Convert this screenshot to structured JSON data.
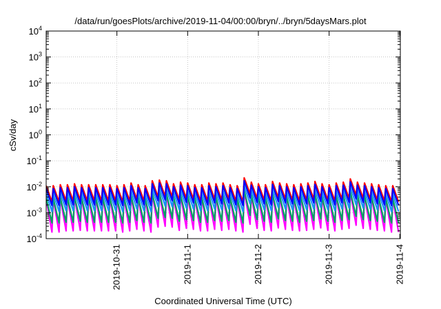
{
  "chart_data": {
    "type": "line",
    "title": "/data/run/goesPlots/archive/2019-11-04/00:00/bryn/../bryn/5daysMars.plot",
    "xlabel": "Coordinated Universal Time (UTC)",
    "ylabel": "cSv/day",
    "yscale": "log",
    "ylim": [
      0.0001,
      10000
    ],
    "xlim": [
      "2019-10-30T00:00",
      "2019-11-04T00:10"
    ],
    "grid": true,
    "y_ticks": [
      {
        "base": "10",
        "exp": "-4",
        "value": 0.0001
      },
      {
        "base": "10",
        "exp": "-3",
        "value": 0.001
      },
      {
        "base": "10",
        "exp": "-2",
        "value": 0.01
      },
      {
        "base": "10",
        "exp": "-1",
        "value": 0.1
      },
      {
        "base": "10",
        "exp": "0",
        "value": 1
      },
      {
        "base": "10",
        "exp": "1",
        "value": 10
      },
      {
        "base": "10",
        "exp": "2",
        "value": 100
      },
      {
        "base": "10",
        "exp": "3",
        "value": 1000
      },
      {
        "base": "10",
        "exp": "4",
        "value": 10000
      }
    ],
    "x_ticks": [
      {
        "label": "2019-10-31",
        "value": "2019-10-31T00:00"
      },
      {
        "label": "2019-11-1",
        "value": "2019-11-01T00:00"
      },
      {
        "label": "2019-11-2",
        "value": "2019-11-02T00:00"
      },
      {
        "label": "2019-11-3",
        "value": "2019-11-03T00:00"
      },
      {
        "label": "2019-11-4",
        "value": "2019-11-04T00:00"
      }
    ],
    "sawtooth": {
      "start": "2019-10-30T00:00",
      "period_hours": 2.4,
      "cycles": 50
    },
    "series": [
      {
        "color": "#ff0000",
        "peaks": [
          0.011,
          0.011,
          0.012,
          0.012,
          0.013,
          0.012,
          0.012,
          0.012,
          0.012,
          0.012,
          0.011,
          0.012,
          0.014,
          0.012,
          0.011,
          0.017,
          0.018,
          0.017,
          0.013,
          0.015,
          0.014,
          0.012,
          0.012,
          0.014,
          0.013,
          0.014,
          0.012,
          0.011,
          0.022,
          0.015,
          0.013,
          0.012,
          0.016,
          0.014,
          0.013,
          0.012,
          0.013,
          0.014,
          0.016,
          0.013,
          0.012,
          0.014,
          0.015,
          0.02,
          0.015,
          0.014,
          0.013,
          0.012,
          0.011,
          0.011
        ],
        "troughs": [
          0.0026,
          0.0026,
          0.0028,
          0.0028,
          0.003,
          0.0028,
          0.0028,
          0.0028,
          0.0028,
          0.0028,
          0.0026,
          0.0028,
          0.0033,
          0.0028,
          0.0026,
          0.004,
          0.0042,
          0.004,
          0.003,
          0.0035,
          0.0033,
          0.0028,
          0.0028,
          0.0033,
          0.003,
          0.0033,
          0.0028,
          0.0026,
          0.0052,
          0.0035,
          0.003,
          0.0028,
          0.0037,
          0.0033,
          0.003,
          0.0028,
          0.003,
          0.0033,
          0.0037,
          0.003,
          0.0028,
          0.0033,
          0.0035,
          0.0047,
          0.0035,
          0.0033,
          0.003,
          0.0028,
          0.0026,
          0.0026
        ]
      },
      {
        "color": "#0000ff",
        "peaks": [
          0.0085,
          0.0085,
          0.0092,
          0.0092,
          0.01,
          0.0092,
          0.0092,
          0.0092,
          0.0092,
          0.0092,
          0.0085,
          0.0092,
          0.011,
          0.0092,
          0.0085,
          0.013,
          0.014,
          0.013,
          0.01,
          0.0115,
          0.011,
          0.0092,
          0.0092,
          0.011,
          0.01,
          0.011,
          0.0092,
          0.0085,
          0.017,
          0.0115,
          0.01,
          0.0092,
          0.0123,
          0.011,
          0.01,
          0.0092,
          0.01,
          0.011,
          0.0123,
          0.01,
          0.0092,
          0.011,
          0.0115,
          0.0154,
          0.0115,
          0.011,
          0.01,
          0.0092,
          0.0085,
          0.0085
        ],
        "troughs": [
          0.0019,
          0.0019,
          0.002,
          0.002,
          0.0022,
          0.002,
          0.002,
          0.002,
          0.002,
          0.002,
          0.0019,
          0.002,
          0.0024,
          0.002,
          0.0019,
          0.0029,
          0.0031,
          0.0029,
          0.0022,
          0.0025,
          0.0024,
          0.002,
          0.002,
          0.0024,
          0.0022,
          0.0024,
          0.002,
          0.0019,
          0.0037,
          0.0025,
          0.0022,
          0.002,
          0.0027,
          0.0024,
          0.0022,
          0.002,
          0.0022,
          0.0024,
          0.0027,
          0.0022,
          0.002,
          0.0024,
          0.0025,
          0.0034,
          0.0025,
          0.0024,
          0.0022,
          0.002,
          0.0019,
          0.0019
        ]
      },
      {
        "color": "#1e90ff",
        "peaks": [
          0.0055,
          0.0055,
          0.006,
          0.006,
          0.0065,
          0.006,
          0.006,
          0.006,
          0.006,
          0.006,
          0.0055,
          0.006,
          0.007,
          0.006,
          0.0055,
          0.0085,
          0.009,
          0.0085,
          0.0065,
          0.0075,
          0.007,
          0.006,
          0.006,
          0.007,
          0.0065,
          0.007,
          0.006,
          0.0055,
          0.011,
          0.0075,
          0.0065,
          0.006,
          0.008,
          0.007,
          0.0065,
          0.006,
          0.0065,
          0.007,
          0.008,
          0.0065,
          0.006,
          0.007,
          0.0075,
          0.01,
          0.0075,
          0.007,
          0.0065,
          0.006,
          0.0055,
          0.0055
        ],
        "troughs": [
          0.0011,
          0.0011,
          0.0012,
          0.0012,
          0.0013,
          0.0012,
          0.0012,
          0.0012,
          0.0012,
          0.0012,
          0.0011,
          0.0012,
          0.0014,
          0.0012,
          0.0011,
          0.0017,
          0.0018,
          0.0017,
          0.0013,
          0.0015,
          0.0014,
          0.0012,
          0.0012,
          0.0014,
          0.0013,
          0.0014,
          0.0012,
          0.0011,
          0.0022,
          0.0015,
          0.0013,
          0.0012,
          0.0016,
          0.0014,
          0.0013,
          0.0012,
          0.0013,
          0.0014,
          0.0016,
          0.0013,
          0.0012,
          0.0014,
          0.0015,
          0.002,
          0.0015,
          0.0014,
          0.0013,
          0.0012,
          0.0011,
          0.0011
        ]
      },
      {
        "color": "#00a060",
        "peaks": [
          0.0036,
          0.0036,
          0.0039,
          0.0039,
          0.0042,
          0.0039,
          0.0039,
          0.0039,
          0.0039,
          0.0039,
          0.0036,
          0.0039,
          0.0046,
          0.0039,
          0.0036,
          0.0055,
          0.0059,
          0.0055,
          0.0042,
          0.0049,
          0.0046,
          0.0039,
          0.0039,
          0.0046,
          0.0042,
          0.0046,
          0.0039,
          0.0036,
          0.0072,
          0.0049,
          0.0042,
          0.0039,
          0.0052,
          0.0046,
          0.0042,
          0.0039,
          0.0042,
          0.0046,
          0.0052,
          0.0042,
          0.0039,
          0.0046,
          0.0049,
          0.0065,
          0.0049,
          0.0046,
          0.0042,
          0.0039,
          0.0036,
          0.0036
        ],
        "troughs": [
          0.0004,
          0.0004,
          0.00043,
          0.00043,
          0.00047,
          0.00043,
          0.00043,
          0.00043,
          0.00043,
          0.00043,
          0.0004,
          0.00043,
          0.0005,
          0.00043,
          0.0004,
          0.00061,
          0.00065,
          0.00061,
          0.00047,
          0.00054,
          0.0005,
          0.00043,
          0.00043,
          0.0005,
          0.00047,
          0.0005,
          0.00043,
          0.0004,
          0.00079,
          0.00054,
          0.00047,
          0.00043,
          0.00058,
          0.0005,
          0.00047,
          0.00043,
          0.00047,
          0.0005,
          0.00058,
          0.00047,
          0.00043,
          0.0005,
          0.00054,
          0.00072,
          0.00054,
          0.0005,
          0.00047,
          0.00043,
          0.0004,
          0.0004
        ]
      },
      {
        "color": "#ff00ff",
        "peaks": [
          0.0033,
          0.0033,
          0.0036,
          0.0036,
          0.0039,
          0.0036,
          0.0036,
          0.0036,
          0.0036,
          0.0036,
          0.0033,
          0.0036,
          0.0042,
          0.0036,
          0.0033,
          0.0051,
          0.0054,
          0.0051,
          0.0039,
          0.0045,
          0.0042,
          0.0036,
          0.0036,
          0.0042,
          0.0039,
          0.0042,
          0.0036,
          0.0033,
          0.0066,
          0.0045,
          0.0039,
          0.0036,
          0.0048,
          0.0042,
          0.0039,
          0.0036,
          0.0039,
          0.0042,
          0.0048,
          0.0039,
          0.0036,
          0.0042,
          0.0045,
          0.006,
          0.0045,
          0.0042,
          0.0039,
          0.0036,
          0.0033,
          0.0033
        ],
        "troughs": [
          0.00018,
          0.00018,
          0.0002,
          0.0002,
          0.00021,
          0.0002,
          0.0002,
          0.0002,
          0.0002,
          0.0002,
          0.00018,
          0.0002,
          0.00023,
          0.0002,
          0.00018,
          0.00028,
          0.0003,
          0.00028,
          0.00021,
          0.00025,
          0.00023,
          0.0002,
          0.0002,
          0.00023,
          0.00021,
          0.00023,
          0.0002,
          0.00018,
          0.00036,
          0.00025,
          0.00021,
          0.0002,
          0.00026,
          0.00023,
          0.00021,
          0.0002,
          0.00021,
          0.00023,
          0.00026,
          0.00021,
          0.0002,
          0.00023,
          0.00025,
          0.00033,
          0.00025,
          0.00023,
          0.00021,
          0.0002,
          0.00018,
          0.00018
        ]
      }
    ]
  }
}
